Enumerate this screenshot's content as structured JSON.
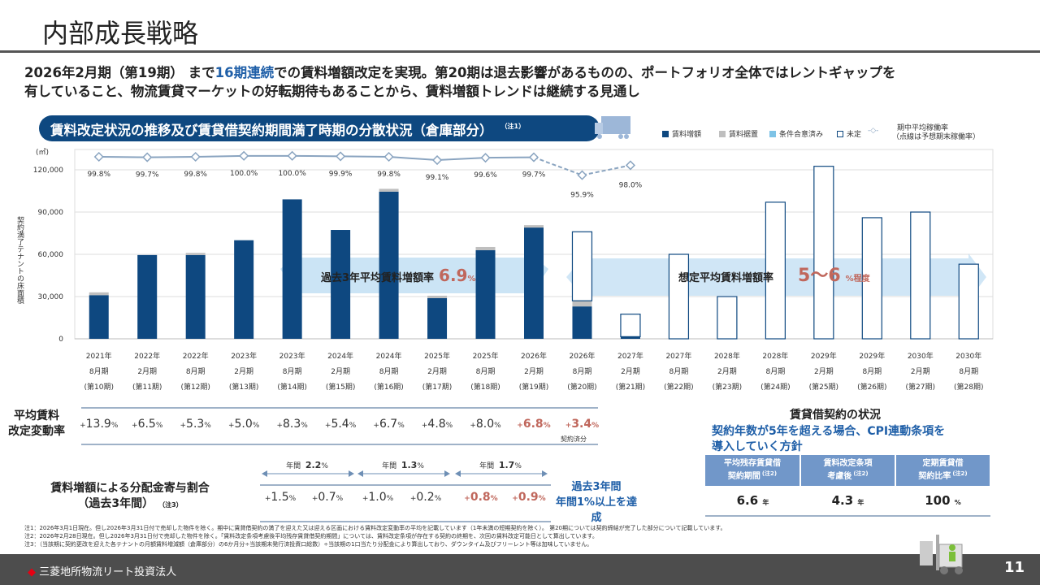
{
  "header": {
    "title": "内部成長戦略"
  },
  "lead": {
    "line1_a": "2026年2月期（第19期） まで",
    "line1_hl": "16期連続",
    "line1_b": "での賃料増額改定を実現。第20期は退去影響があるものの、ポートフォリオ全体ではレントギャップを",
    "line2": "有していること、物流賃貸マーケットの好転期待もあることから、賃料増額トレンドは継続する見通し"
  },
  "banner": {
    "text": "賃料改定状況の推移及び賃貸借契約期間満了時期の分散状況（倉庫部分）",
    "note": "（注1）"
  },
  "legend": {
    "increase": "賃料増額",
    "flat": "賃料据置",
    "agreed": "条件合意済み",
    "undecided": "未定",
    "occupancy": "期中平均稼働率",
    "occupancy_note": "（点線は予想期末稼働率）"
  },
  "colors": {
    "increase": "#0e4880",
    "flat": "#bfbfbf",
    "agreed": "#7ec3e6",
    "undecided_border": "#0e4880",
    "line": "#8aa4c0",
    "accent_red": "#c0675c",
    "accent_blue": "#1f5fa8"
  },
  "chart_data": {
    "type": "bar",
    "stacked": true,
    "unit": "(㎡)",
    "ylabel": "契約満了テナントの床面積",
    "ylim": [
      0,
      120000
    ],
    "yticks": [
      "0",
      "30,000",
      "60,000",
      "90,000",
      "120,000"
    ],
    "grid": true,
    "categories": [
      [
        "2021年",
        "8月期",
        "(第10期)"
      ],
      [
        "2022年",
        "2月期",
        "(第11期)"
      ],
      [
        "2022年",
        "8月期",
        "(第12期)"
      ],
      [
        "2023年",
        "2月期",
        "(第13期)"
      ],
      [
        "2023年",
        "8月期",
        "(第14期)"
      ],
      [
        "2024年",
        "2月期",
        "(第15期)"
      ],
      [
        "2024年",
        "8月期",
        "(第16期)"
      ],
      [
        "2025年",
        "2月期",
        "(第17期)"
      ],
      [
        "2025年",
        "8月期",
        "(第18期)"
      ],
      [
        "2026年",
        "2月期",
        "(第19期)"
      ],
      [
        "2026年",
        "8月期",
        "(第20期)"
      ],
      [
        "2027年",
        "2月期",
        "(第21期)"
      ],
      [
        "2027年",
        "8月期",
        "(第22期)"
      ],
      [
        "2028年",
        "2月期",
        "(第23期)"
      ],
      [
        "2028年",
        "8月期",
        "(第24期)"
      ],
      [
        "2029年",
        "2月期",
        "(第25期)"
      ],
      [
        "2029年",
        "8月期",
        "(第26期)"
      ],
      [
        "2030年",
        "2月期",
        "(第27期)"
      ],
      [
        "2030年",
        "8月期",
        "(第28期)"
      ]
    ],
    "series": [
      {
        "name": "賃料増額",
        "values": [
          31000,
          59500,
          59500,
          70000,
          99000,
          77300,
          104500,
          28900,
          62900,
          79000,
          23000,
          1500,
          0,
          0,
          0,
          0,
          0,
          0,
          0
        ]
      },
      {
        "name": "賃料据置",
        "values": [
          2000,
          0,
          1500,
          0,
          0,
          0,
          2000,
          1700,
          2300,
          1700,
          4000,
          0,
          0,
          0,
          0,
          0,
          0,
          0,
          0
        ]
      },
      {
        "name": "条件合意済み",
        "values": [
          0,
          0,
          0,
          0,
          0,
          0,
          0,
          0,
          0,
          0,
          0,
          0,
          0,
          0,
          0,
          0,
          0,
          0,
          0
        ]
      },
      {
        "name": "未定",
        "values": [
          0,
          0,
          0,
          0,
          0,
          0,
          0,
          0,
          0,
          0,
          49000,
          16000,
          60000,
          30000,
          97000,
          122500,
          86000,
          90000,
          53000
        ]
      }
    ],
    "occupancy": {
      "name": "期中平均稼働率",
      "values": [
        99.8,
        99.7,
        99.8,
        100.0,
        100.0,
        99.9,
        99.8,
        99.1,
        99.6,
        99.7,
        95.9,
        98.0
      ],
      "labels": [
        "99.8%",
        "99.7%",
        "99.8%",
        "100.0%",
        "100.0%",
        "99.9%",
        "99.8%",
        "99.1%",
        "99.6%",
        "99.7%",
        "95.9%",
        "98.0%"
      ],
      "forecast_from_index": 9
    },
    "annotations": {
      "past_label": "過去3年平均賃料増額率",
      "past_value": "6.9",
      "past_unit": "%",
      "future_label": "想定平均賃料増額率",
      "future_value": "5〜6",
      "future_unit": "%程度"
    }
  },
  "rent_change": {
    "label1": "平均賃料",
    "label2": "改定変動率",
    "values": [
      {
        "n": "13.9",
        "red": false
      },
      {
        "n": "6.5",
        "red": false
      },
      {
        "n": "5.3",
        "red": false
      },
      {
        "n": "5.0",
        "red": false
      },
      {
        "n": "8.3",
        "red": false
      },
      {
        "n": "5.4",
        "red": false
      },
      {
        "n": "6.7",
        "red": false
      },
      {
        "n": "4.8",
        "red": false
      },
      {
        "n": "8.0",
        "red": false
      },
      {
        "n": "6.8",
        "red": true
      },
      {
        "n": "3.4",
        "red": true
      }
    ],
    "note": "契約済分"
  },
  "contribution": {
    "label1": "賃料増額による分配金寄与割合",
    "label2": "（過去3年間）",
    "note": "（注3）",
    "annual_prefix": "年間",
    "annual": [
      "2.2",
      "1.3",
      "1.7"
    ],
    "values": [
      {
        "n": "1.5",
        "red": false
      },
      {
        "n": "0.7",
        "red": false
      },
      {
        "n": "1.0",
        "red": false
      },
      {
        "n": "0.2",
        "red": false
      },
      {
        "n": "0.8",
        "red": true
      },
      {
        "n": "0.9",
        "red": true
      }
    ],
    "summary1": "過去3年間",
    "summary2": "年間1%以上を達成"
  },
  "lease": {
    "title": "賃貸借契約の状況",
    "policy1": "契約年数が5年を超える場合、CPI連動条項を",
    "policy2": "導入していく方針",
    "headers": [
      [
        "平均残存賃貸借",
        "契約期間",
        "(注2)"
      ],
      [
        "賃料改定条項",
        "考慮後",
        "(注2)"
      ],
      [
        "定期賃貸借",
        "契約比率",
        "(注2)"
      ]
    ],
    "values": [
      [
        "6.6",
        "年"
      ],
      [
        "4.3",
        "年"
      ],
      [
        "100",
        "%"
      ]
    ]
  },
  "notes": [
    "注1：2026年3月1日現在。但し2026年3月31日付で売却した物件を除く。期中に賃貸借契約の満了を迎えた又は迎える区画における賃料改定変動率の平均を記載しています（1年未満の短期契約を除く）。 第20期については契約締結が完了した部分について記載しています。",
    "注2：2026年2月28日現在。但し2026年3月31日付で売却した物件を除く。「賃料改定条項考慮後平均残存賃貸借契約期間」については、賃料改定条項が存在する契約の終期を、次回の賃料改定可能日として算出しています。",
    "注3：（当該期に契約更改を迎えた各テナントの月額賃料増減額（倉庫部分）の6か月分÷当該期末発行済投資口総数）÷当該期の1口当たり分配金により算出しており、ダウンタイム及びフリーレント等は加味していません。"
  ],
  "footer": {
    "company": "三菱地所物流リート投資法人",
    "page": "11"
  }
}
